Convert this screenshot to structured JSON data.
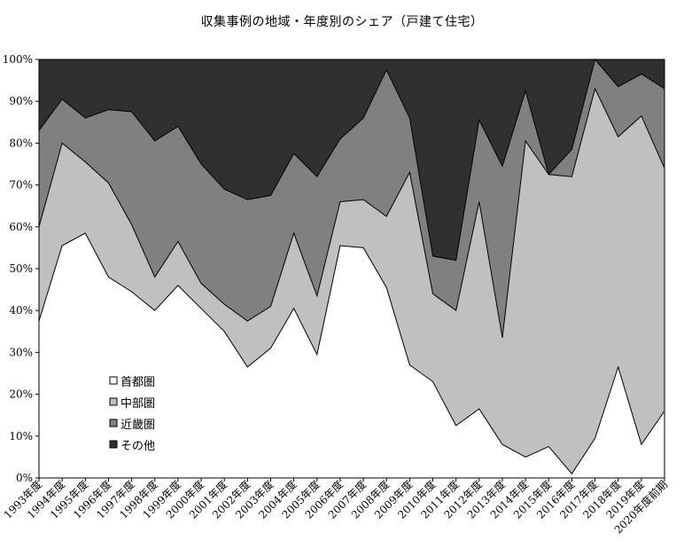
{
  "chart_data": {
    "type": "area",
    "title": "収集事例の地域・年度別のシェア（戸建て住宅）",
    "stacked": true,
    "percent": true,
    "ylim": [
      0,
      100
    ],
    "y_ticks": [
      "0%",
      "10%",
      "20%",
      "30%",
      "40%",
      "50%",
      "60%",
      "70%",
      "80%",
      "90%",
      "100%"
    ],
    "grid": false,
    "legend_position": "bottom-left (inside plot)",
    "categories": [
      "1993年度",
      "1994年度",
      "1995年度",
      "1996年度",
      "1997年度",
      "1998年度",
      "1999年度",
      "2000年度",
      "2001年度",
      "2002年度",
      "2003年度",
      "2004年度",
      "2005年度",
      "2006年度",
      "2007年度",
      "2008年度",
      "2009年度",
      "2010年度",
      "2011年度",
      "2012年度",
      "2013年度",
      "2014年度",
      "2015年度",
      "2016年度",
      "2017年度",
      "2018年度",
      "2019年度",
      "2020年度前期"
    ],
    "series": [
      {
        "name": "首都圏",
        "color": "#ffffff",
        "values": [
          37.5,
          55.5,
          58.5,
          48,
          44.5,
          40,
          46,
          40.5,
          35,
          26.5,
          31,
          40.5,
          29.5,
          55.5,
          55,
          45.5,
          27,
          23,
          12.5,
          16.5,
          8,
          5,
          7.5,
          1,
          9.5,
          26.5,
          8,
          16
        ]
      },
      {
        "name": "中部圏",
        "color": "#c0c0c0",
        "values": [
          22.5,
          24.5,
          17,
          22.5,
          16,
          8,
          10.5,
          6,
          6.5,
          11,
          10,
          18,
          14,
          10.5,
          11.5,
          17,
          46,
          21,
          27.5,
          49.5,
          25.5,
          75.5,
          65,
          71,
          83.5,
          55,
          78.5,
          58
        ]
      },
      {
        "name": "近畿圏",
        "color": "#808080",
        "values": [
          23,
          10.5,
          10.5,
          17.5,
          27,
          32.5,
          27.5,
          28.5,
          27.5,
          29,
          26.5,
          19,
          28.5,
          15,
          19.5,
          35,
          13,
          9,
          12,
          19.5,
          41,
          12,
          0,
          6.5,
          7,
          12,
          10,
          19
        ]
      },
      {
        "name": "その他",
        "color": "#303030",
        "values": [
          17,
          9.5,
          14,
          12,
          12.5,
          19.5,
          16,
          25,
          31,
          33.5,
          32.5,
          22.5,
          28,
          19,
          14,
          2.5,
          14,
          47,
          48,
          14.5,
          25.5,
          7.5,
          27.5,
          21.5,
          0,
          6.5,
          3.5,
          7
        ]
      }
    ]
  }
}
